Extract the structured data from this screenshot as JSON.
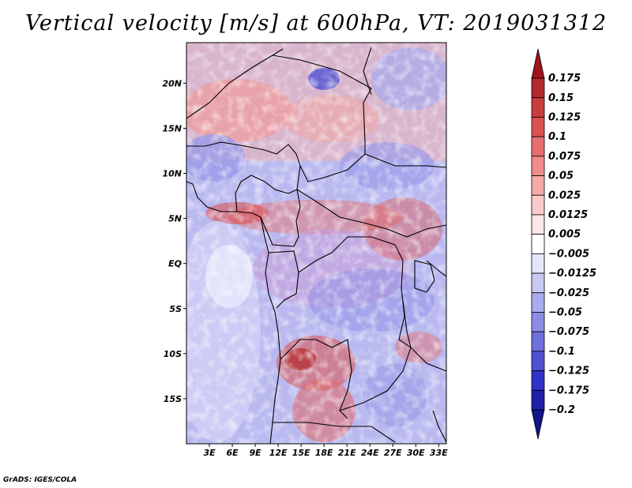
{
  "title": "Vertical velocity [m/s] at 600hPa, VT: 2019031312",
  "credit": "GrADS: IGES/COLA",
  "map": {
    "lat_range": [
      -20,
      24.5
    ],
    "lon_range": [
      0,
      34
    ],
    "lat_labels": [
      {
        "value": 20,
        "text": "20N"
      },
      {
        "value": 15,
        "text": "15N"
      },
      {
        "value": 10,
        "text": "10N"
      },
      {
        "value": 5,
        "text": "5N"
      },
      {
        "value": 0,
        "text": "EQ"
      },
      {
        "value": -5,
        "text": "5S"
      },
      {
        "value": -10,
        "text": "10S"
      },
      {
        "value": -15,
        "text": "15S"
      }
    ],
    "lon_labels": [
      {
        "value": 3,
        "text": "3E"
      },
      {
        "value": 6,
        "text": "6E"
      },
      {
        "value": 9,
        "text": "9E"
      },
      {
        "value": 12,
        "text": "12E"
      },
      {
        "value": 15,
        "text": "15E"
      },
      {
        "value": 18,
        "text": "18E"
      },
      {
        "value": 21,
        "text": "21E"
      },
      {
        "value": 24,
        "text": "24E"
      },
      {
        "value": 27,
        "text": "27E"
      },
      {
        "value": 30,
        "text": "30E"
      },
      {
        "value": 33,
        "text": "33E"
      }
    ]
  },
  "colorbar": {
    "levels": [
      "0.175",
      "0.15",
      "0.125",
      "0.1",
      "0.075",
      "0.05",
      "0.025",
      "0.0125",
      "0.005",
      "−0.005",
      "−0.0125",
      "−0.025",
      "−0.05",
      "−0.075",
      "−0.1",
      "−0.125",
      "−0.175",
      "−0.2"
    ],
    "colors": [
      "#a0141e",
      "#b4282d",
      "#c83c3c",
      "#dc5050",
      "#e66e6e",
      "#f08c8c",
      "#f5aaaa",
      "#facaca",
      "#fde6e6",
      "#ffffff",
      "#e6e6fa",
      "#c8c8f5",
      "#aaaaf0",
      "#8c8ce6",
      "#6e6edc",
      "#5050d2",
      "#3232c8",
      "#1e1eaa",
      "#14148c"
    ]
  }
}
